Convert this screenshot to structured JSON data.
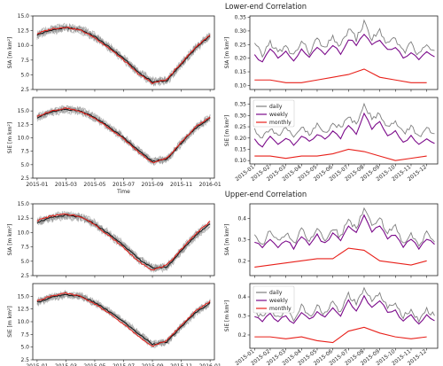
{
  "chart_data": {
    "type": "line",
    "section_titles": [
      "Lower-end Correlation",
      "Upper-end Correlation"
    ],
    "colors": {
      "daily": "#7f7f7f",
      "weekly": "#7b0a8a",
      "monthly": "#e8201a",
      "ensemble": "#8c8c8c",
      "observed": "#111111",
      "model": "#e8201a"
    },
    "left_x_ticks": [
      "2015-01",
      "2015-03",
      "2015-05",
      "2015-07",
      "2015-09",
      "2015-11",
      "2016-01"
    ],
    "right_x_ticks": [
      "2015-01",
      "2015-02",
      "2015-03",
      "2015-04",
      "2015-05",
      "2015-06",
      "2015-07",
      "2015-08",
      "2015-09",
      "2015-10",
      "2015-11",
      "2015-12"
    ],
    "xlabel": "Time",
    "panels": [
      {
        "id": "lower-sia-timeseries",
        "ylabel": "SIA [m km²]",
        "ylim": [
          2.5,
          15.0
        ],
        "yticks": [
          "2.5",
          "5.0",
          "7.5",
          "10.0",
          "12.5",
          "15.0"
        ],
        "show_xticks": false,
        "show_xlabel": false,
        "series": [
          {
            "role": "observed",
            "x_month": [
              0,
              1,
              2,
              3,
              4,
              5,
              6,
              7,
              8,
              9,
              10,
              11,
              12
            ],
            "values": [
              11.8,
              12.6,
              13.0,
              12.7,
              11.5,
              9.7,
              7.8,
              5.5,
              3.8,
              4.0,
              6.8,
              9.5,
              11.6
            ]
          },
          {
            "role": "model",
            "x_month": [
              0,
              1,
              2,
              3,
              4,
              5,
              6,
              7,
              8,
              9,
              10,
              11,
              12
            ],
            "values": [
              12.0,
              12.8,
              13.1,
              12.6,
              11.3,
              9.5,
              7.5,
              5.2,
              3.6,
              4.2,
              7.0,
              9.7,
              11.8
            ]
          }
        ]
      },
      {
        "id": "lower-sie-timeseries",
        "ylabel": "SIE [m km²]",
        "ylim": [
          2.5,
          17.5
        ],
        "yticks": [
          "2.5",
          "5.0",
          "7.5",
          "10.0",
          "12.5",
          "15.0"
        ],
        "show_xticks": true,
        "show_xlabel": true,
        "series": [
          {
            "role": "observed",
            "x_month": [
              0,
              1,
              2,
              3,
              4,
              5,
              6,
              7,
              8,
              9,
              10,
              11,
              12
            ],
            "values": [
              13.8,
              14.8,
              15.3,
              15.0,
              13.8,
              12.0,
              10.0,
              7.7,
              5.6,
              6.0,
              9.0,
              11.8,
              13.7
            ]
          },
          {
            "role": "model",
            "x_month": [
              0,
              1,
              2,
              3,
              4,
              5,
              6,
              7,
              8,
              9,
              10,
              11,
              12
            ],
            "values": [
              14.0,
              15.0,
              15.5,
              14.9,
              13.6,
              11.8,
              9.8,
              7.4,
              5.4,
              6.2,
              9.2,
              12.0,
              13.9
            ]
          }
        ]
      },
      {
        "id": "lower-sia-correlation",
        "ylabel": "SIA [m km²]",
        "ylim": [
          0.085,
          0.355
        ],
        "yticks": [
          "0.10",
          "0.15",
          "0.20",
          "0.25",
          "0.30",
          "0.35"
        ],
        "show_xticks": false,
        "series": [
          {
            "name": "daily",
            "x_month": [
              0,
              0.5,
              1,
              1.5,
              2,
              2.5,
              3,
              3.5,
              4,
              4.5,
              5,
              5.5,
              6,
              6.5,
              7,
              7.5,
              8,
              8.5,
              9,
              9.5,
              10,
              10.5,
              11,
              11.5
            ],
            "values": [
              0.25,
              0.21,
              0.26,
              0.22,
              0.24,
              0.21,
              0.26,
              0.22,
              0.27,
              0.23,
              0.28,
              0.24,
              0.31,
              0.27,
              0.33,
              0.27,
              0.3,
              0.25,
              0.27,
              0.22,
              0.26,
              0.21,
              0.25,
              0.22
            ]
          },
          {
            "name": "weekly",
            "x_month": [
              0,
              0.5,
              1,
              1.5,
              2,
              2.5,
              3,
              3.5,
              4,
              4.5,
              5,
              5.5,
              6,
              6.5,
              7,
              7.5,
              8,
              8.5,
              9,
              9.5,
              10,
              10.5,
              11,
              11.5
            ],
            "values": [
              0.21,
              0.19,
              0.23,
              0.2,
              0.22,
              0.19,
              0.23,
              0.2,
              0.24,
              0.21,
              0.25,
              0.22,
              0.27,
              0.25,
              0.29,
              0.25,
              0.26,
              0.23,
              0.24,
              0.2,
              0.22,
              0.19,
              0.22,
              0.2
            ]
          },
          {
            "name": "monthly",
            "x_month": [
              0,
              1,
              2,
              3,
              4,
              5,
              6,
              7,
              8,
              9,
              10,
              11
            ],
            "values": [
              0.12,
              0.12,
              0.11,
              0.11,
              0.12,
              0.13,
              0.14,
              0.16,
              0.13,
              0.12,
              0.11,
              0.11
            ]
          }
        ]
      },
      {
        "id": "lower-sie-correlation",
        "ylabel": "SIE [m km²]",
        "ylim": [
          0.085,
          0.38
        ],
        "yticks": [
          "0.10",
          "0.15",
          "0.20",
          "0.25",
          "0.30",
          "0.35"
        ],
        "show_xticks": true,
        "legend": {
          "placement": "upper-left",
          "entries": [
            "daily",
            "weekly",
            "monthly"
          ]
        },
        "series": [
          {
            "name": "daily",
            "x_month": [
              0,
              0.5,
              1,
              1.5,
              2,
              2.5,
              3,
              3.5,
              4,
              4.5,
              5,
              5.5,
              6,
              6.5,
              7,
              7.5,
              8,
              8.5,
              9,
              9.5,
              10,
              10.5,
              11,
              11.5
            ],
            "values": [
              0.24,
              0.2,
              0.25,
              0.21,
              0.24,
              0.2,
              0.25,
              0.21,
              0.26,
              0.22,
              0.27,
              0.24,
              0.3,
              0.26,
              0.36,
              0.28,
              0.31,
              0.25,
              0.27,
              0.22,
              0.25,
              0.21,
              0.24,
              0.21
            ]
          },
          {
            "name": "weekly",
            "x_month": [
              0,
              0.5,
              1,
              1.5,
              2,
              2.5,
              3,
              3.5,
              4,
              4.5,
              5,
              5.5,
              6,
              6.5,
              7,
              7.5,
              8,
              8.5,
              9,
              9.5,
              10,
              10.5,
              11,
              11.5
            ],
            "values": [
              0.19,
              0.16,
              0.21,
              0.17,
              0.2,
              0.17,
              0.21,
              0.18,
              0.22,
              0.19,
              0.23,
              0.2,
              0.26,
              0.22,
              0.31,
              0.24,
              0.27,
              0.21,
              0.23,
              0.18,
              0.21,
              0.17,
              0.2,
              0.18
            ]
          },
          {
            "name": "monthly",
            "x_month": [
              0,
              1,
              2,
              3,
              4,
              5,
              6,
              7,
              8,
              9,
              10,
              11
            ],
            "values": [
              0.12,
              0.12,
              0.11,
              0.12,
              0.12,
              0.13,
              0.15,
              0.14,
              0.12,
              0.1,
              0.11,
              0.12
            ]
          }
        ]
      },
      {
        "id": "upper-sia-timeseries",
        "ylabel": "SIA [m km²]",
        "ylim": [
          2.5,
          15.0
        ],
        "yticks": [
          "2.5",
          "5.0",
          "7.5",
          "10.0",
          "12.5",
          "15.0"
        ],
        "show_xticks": false,
        "show_xlabel": false,
        "series": [
          {
            "role": "observed",
            "x_month": [
              0,
              1,
              2,
              3,
              4,
              5,
              6,
              7,
              8,
              9,
              10,
              11,
              12
            ],
            "values": [
              11.8,
              12.6,
              13.0,
              12.7,
              11.5,
              9.7,
              7.8,
              5.5,
              3.8,
              4.0,
              6.8,
              9.5,
              11.6
            ]
          },
          {
            "role": "model",
            "x_month": [
              0,
              1,
              2,
              3,
              4,
              5,
              6,
              7,
              8,
              9,
              10,
              11,
              12
            ],
            "values": [
              12.1,
              12.9,
              13.2,
              12.8,
              11.4,
              9.4,
              7.4,
              5.0,
              3.5,
              4.3,
              7.1,
              9.8,
              11.9
            ]
          }
        ]
      },
      {
        "id": "upper-sie-timeseries",
        "ylabel": "SIE [m km²]",
        "ylim": [
          2.5,
          17.5
        ],
        "yticks": [
          "2.5",
          "5.0",
          "7.5",
          "10.0",
          "12.5",
          "15.0"
        ],
        "show_xticks": true,
        "show_xlabel": true,
        "series": [
          {
            "role": "observed",
            "x_month": [
              0,
              1,
              2,
              3,
              4,
              5,
              6,
              7,
              8,
              9,
              10,
              11,
              12
            ],
            "values": [
              13.8,
              14.8,
              15.3,
              15.0,
              13.8,
              12.0,
              10.0,
              7.7,
              5.6,
              6.0,
              9.0,
              11.8,
              13.7
            ]
          },
          {
            "role": "model",
            "x_month": [
              0,
              1,
              2,
              3,
              4,
              5,
              6,
              7,
              8,
              9,
              10,
              11,
              12
            ],
            "values": [
              14.1,
              15.1,
              15.6,
              15.0,
              13.5,
              11.6,
              9.5,
              7.2,
              5.2,
              6.3,
              9.3,
              12.1,
              14.0
            ]
          }
        ]
      },
      {
        "id": "upper-sia-correlation",
        "ylabel": "SIA [m km²]",
        "ylim": [
          0.13,
          0.47
        ],
        "yticks": [
          "0.2",
          "0.3",
          "0.4"
        ],
        "show_xticks": false,
        "series": [
          {
            "name": "daily",
            "x_month": [
              0,
              0.5,
              1,
              1.5,
              2,
              2.5,
              3,
              3.5,
              4,
              4.5,
              5,
              5.5,
              6,
              6.5,
              7,
              7.5,
              8,
              8.5,
              9,
              9.5,
              10,
              10.5,
              11,
              11.5
            ],
            "values": [
              0.33,
              0.28,
              0.34,
              0.29,
              0.33,
              0.28,
              0.35,
              0.3,
              0.35,
              0.3,
              0.36,
              0.31,
              0.4,
              0.35,
              0.46,
              0.37,
              0.41,
              0.33,
              0.36,
              0.29,
              0.33,
              0.28,
              0.33,
              0.3
            ]
          },
          {
            "name": "weekly",
            "x_month": [
              0,
              0.5,
              1,
              1.5,
              2,
              2.5,
              3,
              3.5,
              4,
              4.5,
              5,
              5.5,
              6,
              6.5,
              7,
              7.5,
              8,
              8.5,
              9,
              9.5,
              10,
              10.5,
              11,
              11.5
            ],
            "values": [
              0.29,
              0.26,
              0.3,
              0.27,
              0.3,
              0.26,
              0.31,
              0.28,
              0.32,
              0.28,
              0.33,
              0.29,
              0.37,
              0.33,
              0.41,
              0.34,
              0.37,
              0.31,
              0.32,
              0.27,
              0.3,
              0.26,
              0.3,
              0.28
            ]
          },
          {
            "name": "monthly",
            "x_month": [
              0,
              1,
              2,
              3,
              4,
              5,
              6,
              7,
              8,
              9,
              10,
              11
            ],
            "values": [
              0.17,
              0.18,
              0.19,
              0.2,
              0.21,
              0.21,
              0.26,
              0.25,
              0.2,
              0.19,
              0.18,
              0.2
            ]
          }
        ]
      },
      {
        "id": "upper-sie-correlation",
        "ylabel": "SIE [m km²]",
        "ylim": [
          0.13,
          0.47
        ],
        "yticks": [
          "0.2",
          "0.3",
          "0.4"
        ],
        "show_xticks": true,
        "legend": {
          "placement": "upper-left",
          "entries": [
            "daily",
            "weekly",
            "monthly"
          ]
        },
        "series": [
          {
            "name": "daily",
            "x_month": [
              0,
              0.5,
              1,
              1.5,
              2,
              2.5,
              3,
              3.5,
              4,
              4.5,
              5,
              5.5,
              6,
              6.5,
              7,
              7.5,
              8,
              8.5,
              9,
              9.5,
              10,
              10.5,
              11,
              11.5
            ],
            "values": [
              0.33,
              0.29,
              0.34,
              0.29,
              0.33,
              0.28,
              0.35,
              0.3,
              0.35,
              0.31,
              0.37,
              0.32,
              0.41,
              0.36,
              0.44,
              0.38,
              0.42,
              0.34,
              0.36,
              0.3,
              0.33,
              0.28,
              0.33,
              0.3
            ]
          },
          {
            "name": "weekly",
            "x_month": [
              0,
              0.5,
              1,
              1.5,
              2,
              2.5,
              3,
              3.5,
              4,
              4.5,
              5,
              5.5,
              6,
              6.5,
              7,
              7.5,
              8,
              8.5,
              9,
              9.5,
              10,
              10.5,
              11,
              11.5
            ],
            "values": [
              0.3,
              0.27,
              0.31,
              0.27,
              0.3,
              0.26,
              0.32,
              0.28,
              0.32,
              0.29,
              0.34,
              0.3,
              0.38,
              0.33,
              0.4,
              0.35,
              0.38,
              0.32,
              0.33,
              0.27,
              0.3,
              0.26,
              0.3,
              0.28
            ]
          },
          {
            "name": "monthly",
            "x_month": [
              0,
              1,
              2,
              3,
              4,
              5,
              6,
              7,
              8,
              9,
              10,
              11
            ],
            "values": [
              0.19,
              0.19,
              0.18,
              0.19,
              0.17,
              0.16,
              0.22,
              0.24,
              0.21,
              0.19,
              0.18,
              0.19
            ]
          }
        ]
      }
    ]
  }
}
